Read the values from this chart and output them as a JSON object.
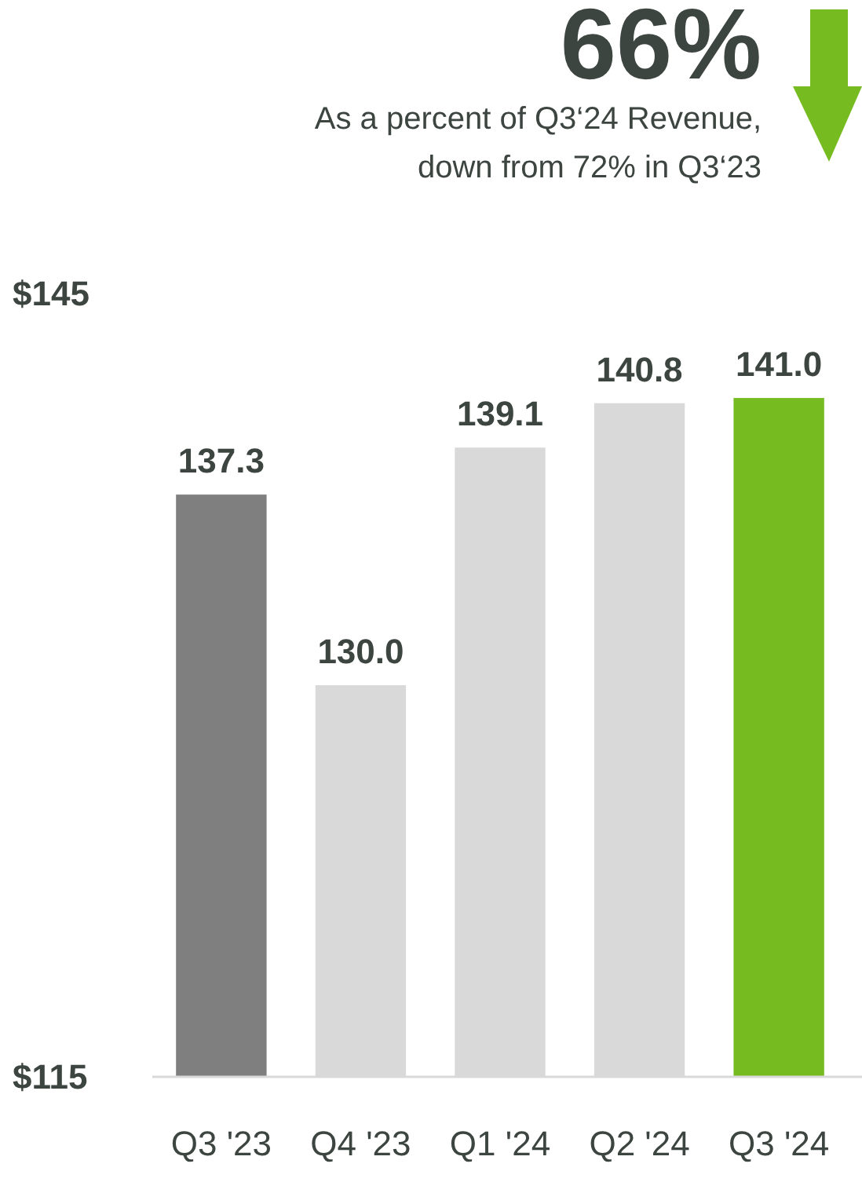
{
  "chart_data": {
    "type": "bar",
    "title": "66%",
    "subtitle": "As a percent of Q3‘24 Revenue,\ndown from 72% in Q3‘23",
    "categories": [
      "Q3 '23",
      "Q4 '23",
      "Q1 '24",
      "Q2 '24",
      "Q3 '24"
    ],
    "values": [
      137.3,
      130.0,
      139.1,
      140.8,
      141.0
    ],
    "colors": [
      "#7f7f7f",
      "#d9d9d9",
      "#d9d9d9",
      "#d9d9d9",
      "#76bc21"
    ],
    "ylim": [
      115,
      145
    ],
    "yticks": [
      {
        "value": 115,
        "label": "$115"
      },
      {
        "value": 145,
        "label": "$145"
      }
    ],
    "value_labels": [
      "137.3",
      "130.0",
      "139.1",
      "140.8",
      "141.0"
    ]
  }
}
